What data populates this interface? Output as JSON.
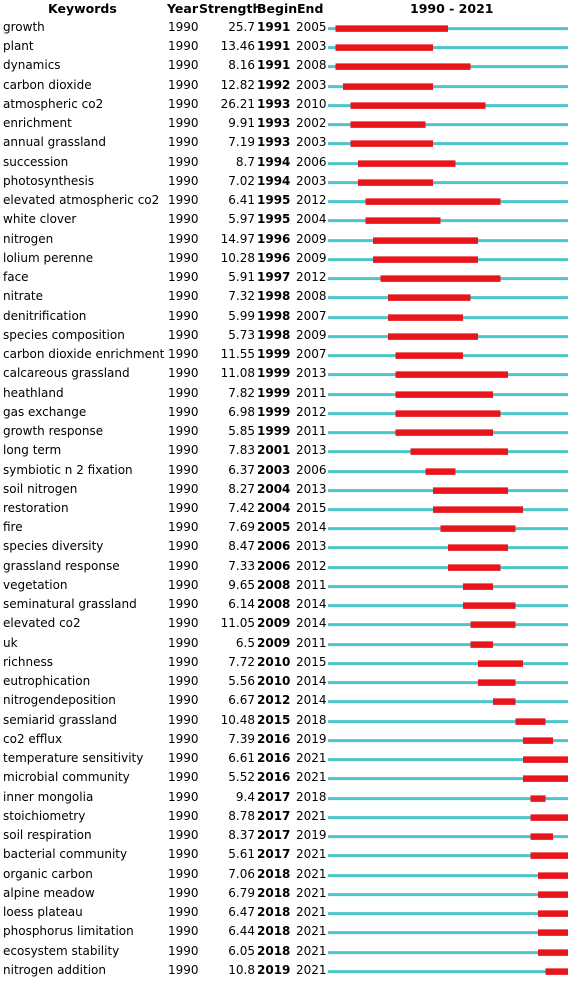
{
  "headers": {
    "keywords": "Keywords",
    "year": "Year",
    "strength": "Strength",
    "begin": "Begin",
    "end": "End",
    "range": "1990 - 2021"
  },
  "colors": {
    "baseline": "#4DC6CB",
    "burst": "#E8151B"
  },
  "chart_data": {
    "type": "table",
    "timeline_start": 1990,
    "timeline_end": 2021,
    "columns": [
      "Keywords",
      "Year",
      "Strength",
      "Begin",
      "End"
    ],
    "rows": [
      {
        "keyword": "growth",
        "year": "1990",
        "strength": "25.7",
        "begin": "1991",
        "end": "2005"
      },
      {
        "keyword": "plant",
        "year": "1990",
        "strength": "13.46",
        "begin": "1991",
        "end": "2003"
      },
      {
        "keyword": "dynamics",
        "year": "1990",
        "strength": "8.16",
        "begin": "1991",
        "end": "2008"
      },
      {
        "keyword": "carbon dioxide",
        "year": "1990",
        "strength": "12.82",
        "begin": "1992",
        "end": "2003"
      },
      {
        "keyword": "atmospheric co2",
        "year": "1990",
        "strength": "26.21",
        "begin": "1993",
        "end": "2010"
      },
      {
        "keyword": "enrichment",
        "year": "1990",
        "strength": "9.91",
        "begin": "1993",
        "end": "2002"
      },
      {
        "keyword": "annual grassland",
        "year": "1990",
        "strength": "7.19",
        "begin": "1993",
        "end": "2003"
      },
      {
        "keyword": "succession",
        "year": "1990",
        "strength": "8.7",
        "begin": "1994",
        "end": "2006"
      },
      {
        "keyword": "photosynthesis",
        "year": "1990",
        "strength": "7.02",
        "begin": "1994",
        "end": "2003"
      },
      {
        "keyword": "elevated atmospheric co2",
        "year": "1990",
        "strength": "6.41",
        "begin": "1995",
        "end": "2012"
      },
      {
        "keyword": "white clover",
        "year": "1990",
        "strength": "5.97",
        "begin": "1995",
        "end": "2004"
      },
      {
        "keyword": "nitrogen",
        "year": "1990",
        "strength": "14.97",
        "begin": "1996",
        "end": "2009"
      },
      {
        "keyword": "lolium perenne",
        "year": "1990",
        "strength": "10.28",
        "begin": "1996",
        "end": "2009"
      },
      {
        "keyword": "face",
        "year": "1990",
        "strength": "5.91",
        "begin": "1997",
        "end": "2012"
      },
      {
        "keyword": "nitrate",
        "year": "1990",
        "strength": "7.32",
        "begin": "1998",
        "end": "2008"
      },
      {
        "keyword": "denitrification",
        "year": "1990",
        "strength": "5.99",
        "begin": "1998",
        "end": "2007"
      },
      {
        "keyword": "species composition",
        "year": "1990",
        "strength": "5.73",
        "begin": "1998",
        "end": "2009"
      },
      {
        "keyword": "carbon dioxide enrichment",
        "year": "1990",
        "strength": "11.55",
        "begin": "1999",
        "end": "2007"
      },
      {
        "keyword": "calcareous grassland",
        "year": "1990",
        "strength": "11.08",
        "begin": "1999",
        "end": "2013"
      },
      {
        "keyword": "heathland",
        "year": "1990",
        "strength": "7.82",
        "begin": "1999",
        "end": "2011"
      },
      {
        "keyword": "gas exchange",
        "year": "1990",
        "strength": "6.98",
        "begin": "1999",
        "end": "2012"
      },
      {
        "keyword": "growth response",
        "year": "1990",
        "strength": "5.85",
        "begin": "1999",
        "end": "2011"
      },
      {
        "keyword": "long term",
        "year": "1990",
        "strength": "7.83",
        "begin": "2001",
        "end": "2013"
      },
      {
        "keyword": "symbiotic n 2 fixation",
        "year": "1990",
        "strength": "6.37",
        "begin": "2003",
        "end": "2006"
      },
      {
        "keyword": "soil nitrogen",
        "year": "1990",
        "strength": "8.27",
        "begin": "2004",
        "end": "2013"
      },
      {
        "keyword": "restoration",
        "year": "1990",
        "strength": "7.42",
        "begin": "2004",
        "end": "2015"
      },
      {
        "keyword": "fire",
        "year": "1990",
        "strength": "7.69",
        "begin": "2005",
        "end": "2014"
      },
      {
        "keyword": "species diversity",
        "year": "1990",
        "strength": "8.47",
        "begin": "2006",
        "end": "2013"
      },
      {
        "keyword": "grassland response",
        "year": "1990",
        "strength": "7.33",
        "begin": "2006",
        "end": "2012"
      },
      {
        "keyword": "vegetation",
        "year": "1990",
        "strength": "9.65",
        "begin": "2008",
        "end": "2011"
      },
      {
        "keyword": "seminatural grassland",
        "year": "1990",
        "strength": "6.14",
        "begin": "2008",
        "end": "2014"
      },
      {
        "keyword": "elevated co2",
        "year": "1990",
        "strength": "11.05",
        "begin": "2009",
        "end": "2014"
      },
      {
        "keyword": "uk",
        "year": "1990",
        "strength": "6.5",
        "begin": "2009",
        "end": "2011"
      },
      {
        "keyword": "richness",
        "year": "1990",
        "strength": "7.72",
        "begin": "2010",
        "end": "2015"
      },
      {
        "keyword": "eutrophication",
        "year": "1990",
        "strength": "5.56",
        "begin": "2010",
        "end": "2014"
      },
      {
        "keyword": "nitrogendeposition",
        "year": "1990",
        "strength": "6.67",
        "begin": "2012",
        "end": "2014"
      },
      {
        "keyword": "semiarid grassland",
        "year": "1990",
        "strength": "10.48",
        "begin": "2015",
        "end": "2018"
      },
      {
        "keyword": "co2 efflux",
        "year": "1990",
        "strength": "7.39",
        "begin": "2016",
        "end": "2019"
      },
      {
        "keyword": "temperature sensitivity",
        "year": "1990",
        "strength": "6.61",
        "begin": "2016",
        "end": "2021"
      },
      {
        "keyword": "microbial community",
        "year": "1990",
        "strength": "5.52",
        "begin": "2016",
        "end": "2021"
      },
      {
        "keyword": "inner mongolia",
        "year": "1990",
        "strength": "9.4",
        "begin": "2017",
        "end": "2018"
      },
      {
        "keyword": "stoichiometry",
        "year": "1990",
        "strength": "8.78",
        "begin": "2017",
        "end": "2021"
      },
      {
        "keyword": "soil respiration",
        "year": "1990",
        "strength": "8.37",
        "begin": "2017",
        "end": "2019"
      },
      {
        "keyword": "bacterial community",
        "year": "1990",
        "strength": "5.61",
        "begin": "2017",
        "end": "2021"
      },
      {
        "keyword": "organic carbon",
        "year": "1990",
        "strength": "7.06",
        "begin": "2018",
        "end": "2021"
      },
      {
        "keyword": "alpine meadow",
        "year": "1990",
        "strength": "6.79",
        "begin": "2018",
        "end": "2021"
      },
      {
        "keyword": "loess plateau",
        "year": "1990",
        "strength": "6.47",
        "begin": "2018",
        "end": "2021"
      },
      {
        "keyword": "phosphorus limitation",
        "year": "1990",
        "strength": "6.44",
        "begin": "2018",
        "end": "2021"
      },
      {
        "keyword": "ecosystem stability",
        "year": "1990",
        "strength": "6.05",
        "begin": "2018",
        "end": "2021"
      },
      {
        "keyword": "nitrogen addition",
        "year": "1990",
        "strength": "10.8",
        "begin": "2019",
        "end": "2021"
      }
    ]
  }
}
